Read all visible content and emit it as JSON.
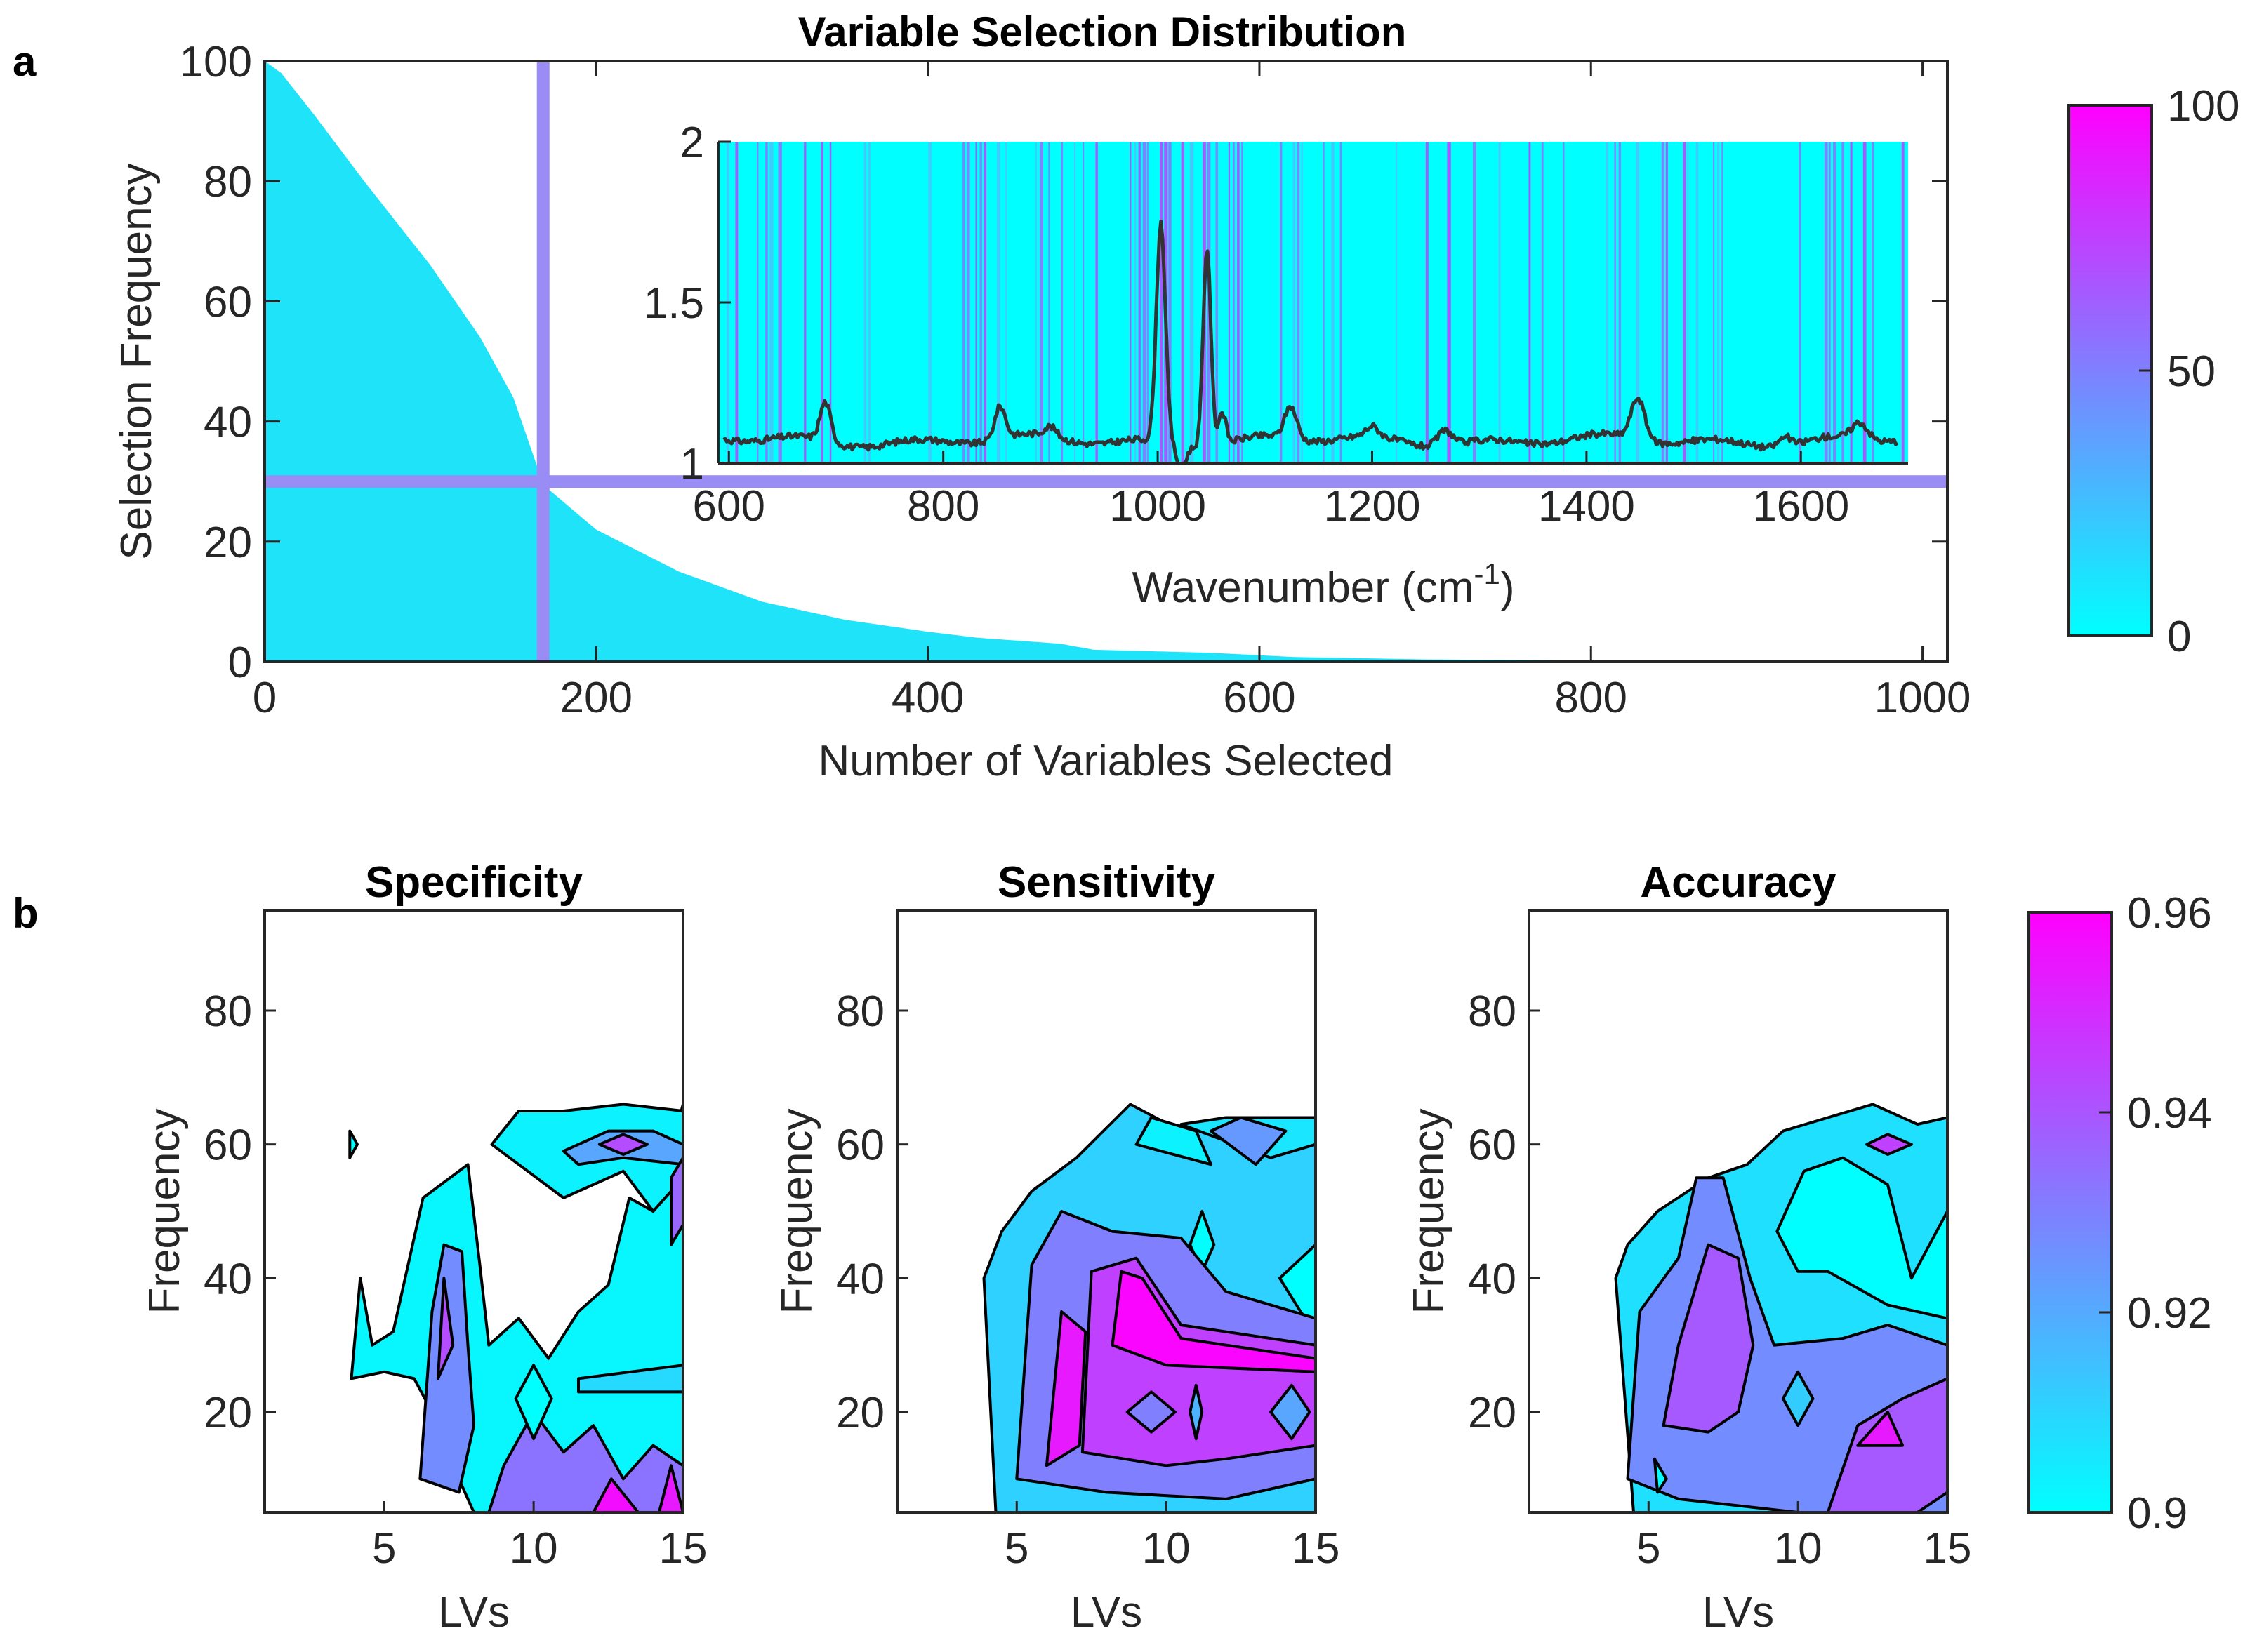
{
  "panel_letters": {
    "a": "a",
    "b": "b"
  },
  "colors": {
    "cyan": "#00ffff",
    "magenta": "#ff00ff",
    "hist_fill": "#1fe3f9",
    "threshold_line": "#9a8cf5",
    "spectrum_line": "#333333"
  },
  "chart_data": [
    {
      "id": "panel-a-main",
      "type": "area",
      "title": "Variable Selection Distribution",
      "xlabel": "Number of Variables Selected",
      "ylabel": "Selection Frequency",
      "xlim": [
        0,
        1015
      ],
      "ylim": [
        0,
        100
      ],
      "xticks": [
        "0",
        "200",
        "400",
        "600",
        "800",
        "1000"
      ],
      "yticks": [
        "0",
        "20",
        "40",
        "60",
        "80",
        "100"
      ],
      "x": [
        0,
        10,
        30,
        60,
        100,
        130,
        150,
        165,
        170,
        200,
        250,
        300,
        350,
        400,
        430,
        480,
        500,
        570,
        620,
        700,
        800,
        1015
      ],
      "y": [
        100,
        98,
        91,
        80,
        66,
        54,
        44,
        32,
        29,
        22,
        15,
        10,
        7,
        5,
        4,
        3,
        2,
        1.5,
        0.8,
        0.4,
        0.2,
        0.1
      ],
      "threshold": {
        "x": 168,
        "y": 30
      }
    },
    {
      "id": "panel-a-inset",
      "type": "line",
      "xlabel": "Wavenumber (cm",
      "xlabel_sup": "-1",
      "xlabel_end": ")",
      "xlim": [
        590,
        1700
      ],
      "ylim": [
        1,
        2
      ],
      "xticks": [
        "600",
        "800",
        "1000",
        "1200",
        "1400",
        "1600"
      ],
      "yticks": [
        "1",
        "1.5",
        "2"
      ],
      "spectrum_peaks": [
        {
          "center": 1003,
          "height": 0.68,
          "width": 6
        },
        {
          "center": 1046,
          "height": 0.62,
          "width": 5
        },
        {
          "center": 1060,
          "height": 0.1,
          "width": 5
        },
        {
          "center": 690,
          "height": 0.12,
          "width": 7
        },
        {
          "center": 853,
          "height": 0.1,
          "width": 7
        },
        {
          "center": 1124,
          "height": 0.1,
          "width": 8
        },
        {
          "center": 1268,
          "height": 0.05,
          "width": 10
        },
        {
          "center": 1448,
          "height": 0.13,
          "width": 9
        },
        {
          "center": 1655,
          "height": 0.05,
          "width": 10
        },
        {
          "center": 1585,
          "height": 0.03,
          "width": 8
        },
        {
          "center": 900,
          "height": 0.03,
          "width": 8
        },
        {
          "center": 1200,
          "height": 0.03,
          "width": 8
        }
      ],
      "spectrum_baseline": 1.07,
      "spectrum_dip": {
        "center": 1022,
        "depth": 0.07,
        "width": 6
      }
    },
    {
      "id": "panel-a-colorbar",
      "type": "colorbar",
      "range": [
        0,
        100
      ],
      "ticks": [
        "0",
        "50",
        "100"
      ]
    },
    {
      "id": "panel-b-specificity",
      "type": "heatmap",
      "title": "Specificity",
      "xlabel": "LVs",
      "ylabel": "Frequency",
      "xlim": [
        1,
        15
      ],
      "ylim": [
        5,
        95
      ],
      "xticks": [
        "5",
        "10",
        "15"
      ],
      "yticks": [
        "20",
        "40",
        "60",
        "80"
      ]
    },
    {
      "id": "panel-b-sensitivity",
      "type": "heatmap",
      "title": "Sensitivity",
      "xlabel": "LVs",
      "ylabel": "Frequency",
      "xlim": [
        1,
        15
      ],
      "ylim": [
        5,
        95
      ],
      "xticks": [
        "5",
        "10",
        "15"
      ],
      "yticks": [
        "20",
        "40",
        "60",
        "80"
      ]
    },
    {
      "id": "panel-b-accuracy",
      "type": "heatmap",
      "title": "Accuracy",
      "xlabel": "LVs",
      "ylabel": "Frequency",
      "xlim": [
        1,
        15
      ],
      "ylim": [
        5,
        95
      ],
      "xticks": [
        "5",
        "10",
        "15"
      ],
      "yticks": [
        "20",
        "40",
        "60",
        "80"
      ]
    },
    {
      "id": "panel-b-colorbar",
      "type": "colorbar",
      "range": [
        0.9,
        0.96
      ],
      "ticks": [
        "0.9",
        "0.92",
        "0.94",
        "0.96"
      ]
    }
  ]
}
